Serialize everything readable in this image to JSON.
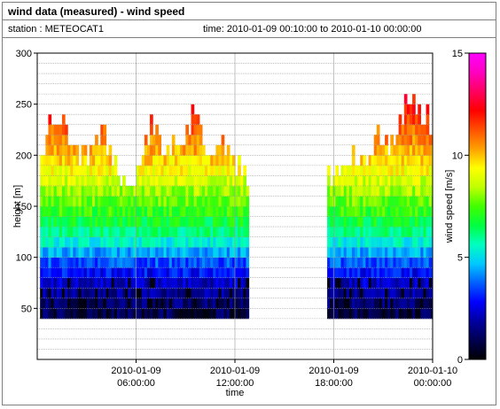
{
  "header": {
    "title": "wind data (measured) - wind speed",
    "station": "station : METEOCAT1",
    "time_range": "time: 2010-01-09 00:10:00 to 2010-01-10 00:00:00"
  },
  "chart_data": {
    "type": "heatmap",
    "title": "wind data (measured) - wind speed",
    "xlabel": "time",
    "ylabel": "height [m]",
    "colorbar_label": "wind speed [m/s]",
    "x_range_hours": [
      0,
      24
    ],
    "x_tick_hours": [
      6,
      12,
      18,
      24
    ],
    "x_tick_labels": [
      [
        "2010-01-09",
        "06:00:00"
      ],
      [
        "2010-01-09",
        "12:00:00"
      ],
      [
        "2010-01-09",
        "18:00:00"
      ],
      [
        "2010-01-10",
        "00:00:00"
      ]
    ],
    "ylim": [
      0,
      300
    ],
    "y_ticks": [
      50,
      100,
      150,
      200,
      250,
      300
    ],
    "colorbar_range": [
      0,
      15
    ],
    "colorbar_ticks": [
      0,
      5,
      10,
      15
    ],
    "colormap": [
      "#000000",
      "#000050",
      "#0000a0",
      "#0000ff",
      "#0060ff",
      "#00c8ff",
      "#00ffc0",
      "#00ff40",
      "#40ff00",
      "#c0ff00",
      "#ffff00",
      "#ffa000",
      "#ff5000",
      "#ff0000",
      "#ff0060",
      "#ff00c0",
      "#ff00ff"
    ],
    "grid": true,
    "data_summary": {
      "min_height": 40,
      "height_step": 10,
      "data_segments_hours": [
        [
          0.17,
          12.7
        ],
        [
          17.6,
          24.0
        ]
      ],
      "top_height_m": [
        [
          0.3,
          200
        ],
        [
          0.6,
          225
        ],
        [
          1.0,
          235
        ],
        [
          1.5,
          230
        ],
        [
          2.0,
          210
        ],
        [
          2.5,
          200
        ],
        [
          3.0,
          195
        ],
        [
          3.5,
          205
        ],
        [
          4.0,
          220
        ],
        [
          4.5,
          200
        ],
        [
          5.0,
          180
        ],
        [
          5.5,
          165
        ],
        [
          6.0,
          175
        ],
        [
          6.5,
          200
        ],
        [
          7.0,
          225
        ],
        [
          7.5,
          205
        ],
        [
          8.0,
          200
        ],
        [
          8.5,
          215
        ],
        [
          9.0,
          210
        ],
        [
          9.5,
          240
        ],
        [
          10.0,
          225
        ],
        [
          10.5,
          195
        ],
        [
          11.0,
          205
        ],
        [
          11.5,
          200
        ],
        [
          12.0,
          190
        ],
        [
          12.6,
          175
        ],
        [
          17.7,
          170
        ],
        [
          18.2,
          180
        ],
        [
          18.7,
          195
        ],
        [
          19.2,
          190
        ],
        [
          19.7,
          185
        ],
        [
          20.2,
          200
        ],
        [
          20.7,
          215
        ],
        [
          21.2,
          205
        ],
        [
          21.7,
          220
        ],
        [
          22.2,
          235
        ],
        [
          22.7,
          255
        ],
        [
          23.2,
          240
        ],
        [
          23.7,
          235
        ],
        [
          24.0,
          225
        ]
      ],
      "profile_m_s": [
        [
          40,
          0.8
        ],
        [
          60,
          1.5
        ],
        [
          80,
          2.5
        ],
        [
          100,
          4.0
        ],
        [
          120,
          5.8
        ],
        [
          140,
          7.0
        ],
        [
          160,
          8.0
        ],
        [
          180,
          9.0
        ],
        [
          200,
          10.0
        ],
        [
          220,
          10.8
        ],
        [
          240,
          11.8
        ],
        [
          260,
          12.3
        ]
      ],
      "calm_gap_hours": [
        [
          12.7,
          17.6
        ]
      ]
    }
  }
}
